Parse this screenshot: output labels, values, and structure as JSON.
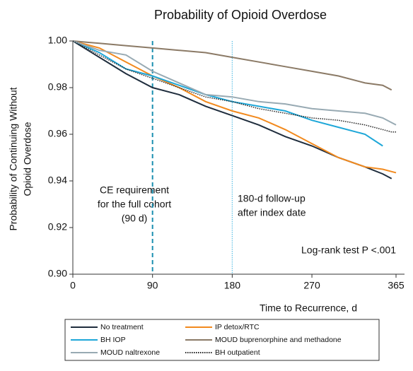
{
  "chart_data": {
    "type": "line",
    "title": "Probability of Opioid Overdose",
    "ylabel": [
      "Probability of Continuing Without",
      "Opioid Overdose"
    ],
    "xlabel": "Time to Recurrence, d",
    "x": [
      0,
      30,
      60,
      90,
      120,
      150,
      180,
      210,
      240,
      270,
      300,
      330,
      350,
      360,
      365
    ],
    "series": [
      {
        "name": "No treatment",
        "color": "#1f2d3d",
        "style": "solid",
        "values": [
          1.0,
          0.993,
          0.986,
          0.98,
          0.977,
          0.972,
          0.968,
          0.964,
          0.959,
          0.955,
          0.95,
          0.946,
          0.943,
          0.941,
          null
        ]
      },
      {
        "name": "IP detox/RTC",
        "color": "#f28a1e",
        "style": "solid",
        "values": [
          1.0,
          0.997,
          0.991,
          0.985,
          0.98,
          0.974,
          0.97,
          0.967,
          0.962,
          0.956,
          0.95,
          0.946,
          0.945,
          0.944,
          0.9435
        ]
      },
      {
        "name": "BH IOP",
        "color": "#1ea7d8",
        "style": "solid",
        "values": [
          1.0,
          0.995,
          0.988,
          0.985,
          0.981,
          0.977,
          0.974,
          0.972,
          0.97,
          0.966,
          0.963,
          0.96,
          0.955,
          null,
          null
        ]
      },
      {
        "name": "MOUD buprenorphine and methadone",
        "color": "#8b7a66",
        "style": "solid",
        "values": [
          1.0,
          0.999,
          0.998,
          0.997,
          0.996,
          0.995,
          0.993,
          0.991,
          0.989,
          0.987,
          0.985,
          0.982,
          0.981,
          0.979,
          null
        ]
      },
      {
        "name": "MOUD naltrexone",
        "color": "#98aab3",
        "style": "solid",
        "values": [
          1.0,
          0.996,
          0.994,
          0.987,
          0.982,
          0.977,
          0.976,
          0.974,
          0.973,
          0.971,
          0.97,
          0.969,
          0.967,
          0.965,
          0.964
        ]
      },
      {
        "name": "BH outpatient",
        "color": "#222222",
        "style": "dotted",
        "values": [
          1.0,
          0.994,
          0.988,
          0.984,
          0.98,
          0.976,
          0.974,
          0.971,
          0.969,
          0.967,
          0.966,
          0.964,
          0.962,
          0.961,
          0.961
        ]
      }
    ],
    "xlim": [
      0,
      365
    ],
    "xticks": [
      0,
      90,
      180,
      270,
      365
    ],
    "ylim": [
      0.9,
      1.0
    ],
    "yticks": [
      {
        "value": 0.9,
        "label": "0.90"
      },
      0.92,
      0.94,
      0.96,
      0.98,
      {
        "value": 1.0,
        "label": "1.00"
      }
    ],
    "vlines": [
      {
        "x": 90,
        "color": "#1a8fb0",
        "style": "dashed"
      },
      {
        "x": 180,
        "color": "#5cc0e6",
        "style": "dotted"
      }
    ],
    "annotations": [
      {
        "lines": [
          "CE requirement",
          "for the full cohort",
          "(90 d)"
        ]
      },
      {
        "lines": [
          "180-d follow-up",
          "after index date"
        ]
      },
      {
        "lines": [
          "Log-rank test P <.001"
        ]
      }
    ]
  }
}
